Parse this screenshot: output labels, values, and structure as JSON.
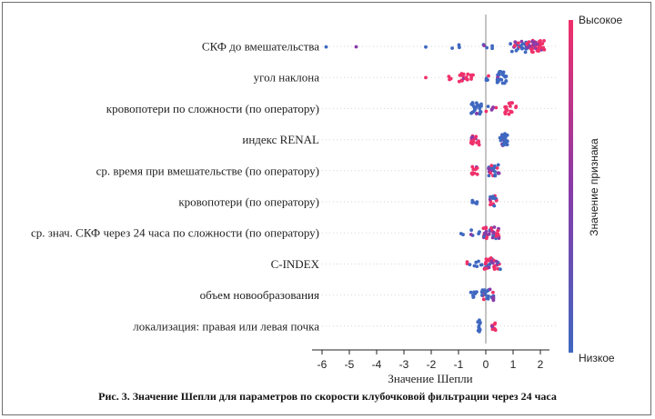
{
  "caption": "Рис. 3. Значение Шепли для параметров по скорости клубочковой фильтрации через 24 часа",
  "colors": {
    "high": "#f0306a",
    "mid": "#8a3aa8",
    "low": "#3f68c0",
    "zero_line": "#8a8a8a"
  },
  "chart_data": {
    "type": "scatter",
    "subtype": "shap-beeswarm",
    "xlabel": "Значение Шепли",
    "xlim": [
      -6.4,
      2.6
    ],
    "xticks": [
      -6,
      -5,
      -4,
      -3,
      -2,
      -1,
      0,
      1,
      2
    ],
    "colorbar": {
      "label": "Значение признака",
      "high": "Высокое",
      "low": "Низкое"
    },
    "features": [
      {
        "name": "СКФ до вмешательства",
        "clusters": [
          {
            "low": -5.85,
            "high": -5.85,
            "n": 1,
            "color": "low",
            "spread": 0.3
          },
          {
            "low": -4.75,
            "high": -4.75,
            "n": 1,
            "color": "low",
            "spread": 0.3
          },
          {
            "low": -2.2,
            "high": -2.2,
            "n": 1,
            "color": "low",
            "spread": 0.3
          },
          {
            "low": -1.3,
            "high": -0.9,
            "n": 3,
            "color": "low",
            "spread": 0.4
          },
          {
            "low": -0.2,
            "high": 0.3,
            "n": 5,
            "color": "low",
            "spread": 0.5
          },
          {
            "low": 0.9,
            "high": 1.6,
            "n": 28,
            "color": "mix-low",
            "spread": 1.0
          },
          {
            "low": 1.5,
            "high": 2.15,
            "n": 40,
            "color": "high",
            "spread": 1.0
          }
        ]
      },
      {
        "name": "угол наклона",
        "clusters": [
          {
            "low": -2.2,
            "high": -2.2,
            "n": 1,
            "color": "high",
            "spread": 0.3
          },
          {
            "low": -1.55,
            "high": -1.25,
            "n": 3,
            "color": "high",
            "spread": 0.4
          },
          {
            "low": -1.0,
            "high": -0.4,
            "n": 16,
            "color": "high",
            "spread": 0.7
          },
          {
            "low": -0.1,
            "high": 0.15,
            "n": 4,
            "color": "mix",
            "spread": 0.5
          },
          {
            "low": 0.4,
            "high": 0.75,
            "n": 26,
            "color": "low",
            "spread": 1.0
          }
        ]
      },
      {
        "name": "кровопотери по сложности (по оператору)",
        "clusters": [
          {
            "low": -0.55,
            "high": -0.15,
            "n": 24,
            "color": "low",
            "spread": 1.0
          },
          {
            "low": -0.15,
            "high": 0.4,
            "n": 6,
            "color": "mix",
            "spread": 0.6
          },
          {
            "low": 0.7,
            "high": 1.15,
            "n": 18,
            "color": "high",
            "spread": 1.0
          }
        ]
      },
      {
        "name": "индекс RENAL",
        "clusters": [
          {
            "low": -0.6,
            "high": -0.2,
            "n": 16,
            "color": "high",
            "spread": 0.9
          },
          {
            "low": 0.45,
            "high": 0.8,
            "n": 26,
            "color": "low",
            "spread": 1.0
          }
        ]
      },
      {
        "name": "ср. время при вмешательстве (по оператору)",
        "clusters": [
          {
            "low": -0.55,
            "high": -0.3,
            "n": 10,
            "color": "high",
            "spread": 0.8
          },
          {
            "low": 0.1,
            "high": 0.5,
            "n": 24,
            "color": "mix-low",
            "spread": 1.0
          }
        ]
      },
      {
        "name": "кровопотери (по оператору)",
        "clusters": [
          {
            "low": -0.5,
            "high": -0.3,
            "n": 7,
            "color": "low",
            "spread": 0.7
          },
          {
            "low": 0.15,
            "high": 0.4,
            "n": 18,
            "color": "mix",
            "spread": 1.0
          }
        ]
      },
      {
        "name": "ср. знач. СКФ через 24 часа по сложности (по оператору)",
        "clusters": [
          {
            "low": -1.0,
            "high": -0.75,
            "n": 2,
            "color": "low",
            "spread": 0.4
          },
          {
            "low": -0.6,
            "high": -0.2,
            "n": 5,
            "color": "low",
            "spread": 0.5
          },
          {
            "low": -0.1,
            "high": 0.5,
            "n": 36,
            "color": "mix-high",
            "spread": 1.0
          }
        ]
      },
      {
        "name": "C-INDEX",
        "clusters": [
          {
            "low": -0.85,
            "high": -0.6,
            "n": 2,
            "color": "high",
            "spread": 0.4
          },
          {
            "low": -0.6,
            "high": -0.1,
            "n": 7,
            "color": "low",
            "spread": 0.5
          },
          {
            "low": -0.05,
            "high": 0.55,
            "n": 32,
            "color": "mix-high",
            "spread": 1.0
          }
        ]
      },
      {
        "name": "объем новообразования",
        "clusters": [
          {
            "low": -0.6,
            "high": -0.3,
            "n": 7,
            "color": "low",
            "spread": 0.6
          },
          {
            "low": -0.15,
            "high": 0.3,
            "n": 24,
            "color": "mix-low",
            "spread": 1.0
          }
        ]
      },
      {
        "name": "локализация: правая или левая почка",
        "clusters": [
          {
            "low": -0.3,
            "high": -0.2,
            "n": 10,
            "color": "low",
            "spread": 1.0
          },
          {
            "low": 0.2,
            "high": 0.38,
            "n": 10,
            "color": "high",
            "spread": 0.8
          }
        ]
      }
    ]
  }
}
